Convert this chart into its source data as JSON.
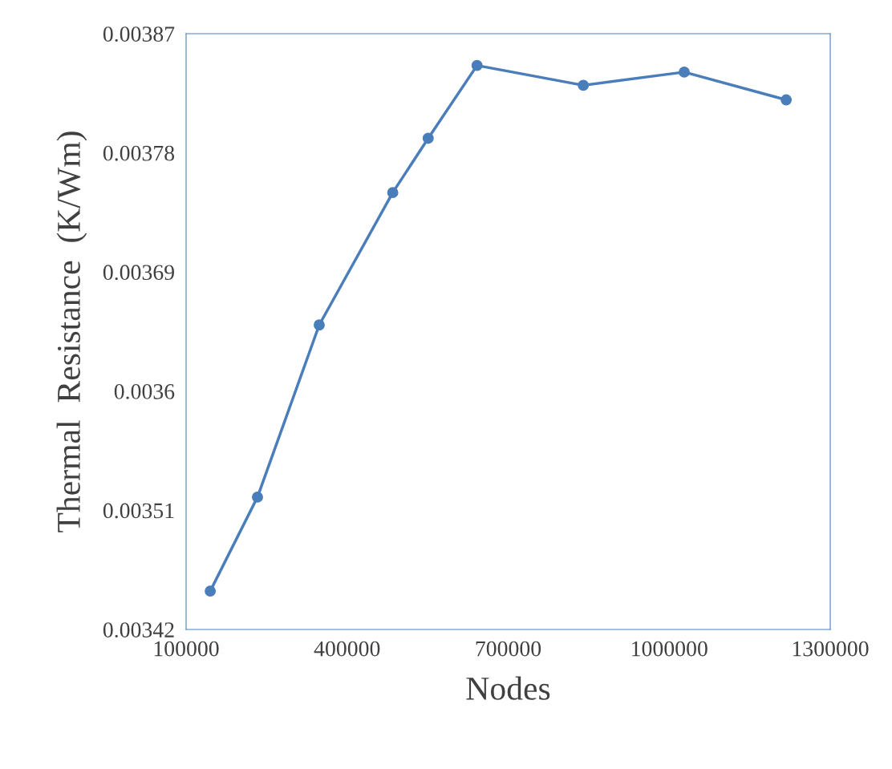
{
  "chart_data": {
    "type": "line",
    "xlabel": "Nodes",
    "ylabel": "Thermal  Resistance  (K/Wm)",
    "x": [
      145000,
      233000,
      348000,
      485000,
      551000,
      642000,
      840000,
      1028000,
      1218000
    ],
    "series": [
      {
        "color": "#4a7ebb",
        "values": [
          0.003449,
          0.00352,
          0.00365,
          0.00375,
          0.003791,
          0.003846,
          0.003831,
          0.003841,
          0.00382
        ]
      }
    ],
    "xlim": [
      100000,
      1300000
    ],
    "xticks": [
      100000,
      400000,
      700000,
      1000000,
      1300000
    ],
    "ylim": [
      0.00342,
      0.00387
    ],
    "yticks": [
      {
        "value": 0.00342,
        "label": "0.00342"
      },
      {
        "value": 0.00351,
        "label": "0.00351"
      },
      {
        "value": 0.0036,
        "label": "0.0036"
      },
      {
        "value": 0.00369,
        "label": "0.00369"
      },
      {
        "value": 0.00378,
        "label": "0.00378"
      },
      {
        "value": 0.00387,
        "label": "0.00387"
      }
    ],
    "grid": false,
    "marker": "circle",
    "line_style": "solid"
  }
}
